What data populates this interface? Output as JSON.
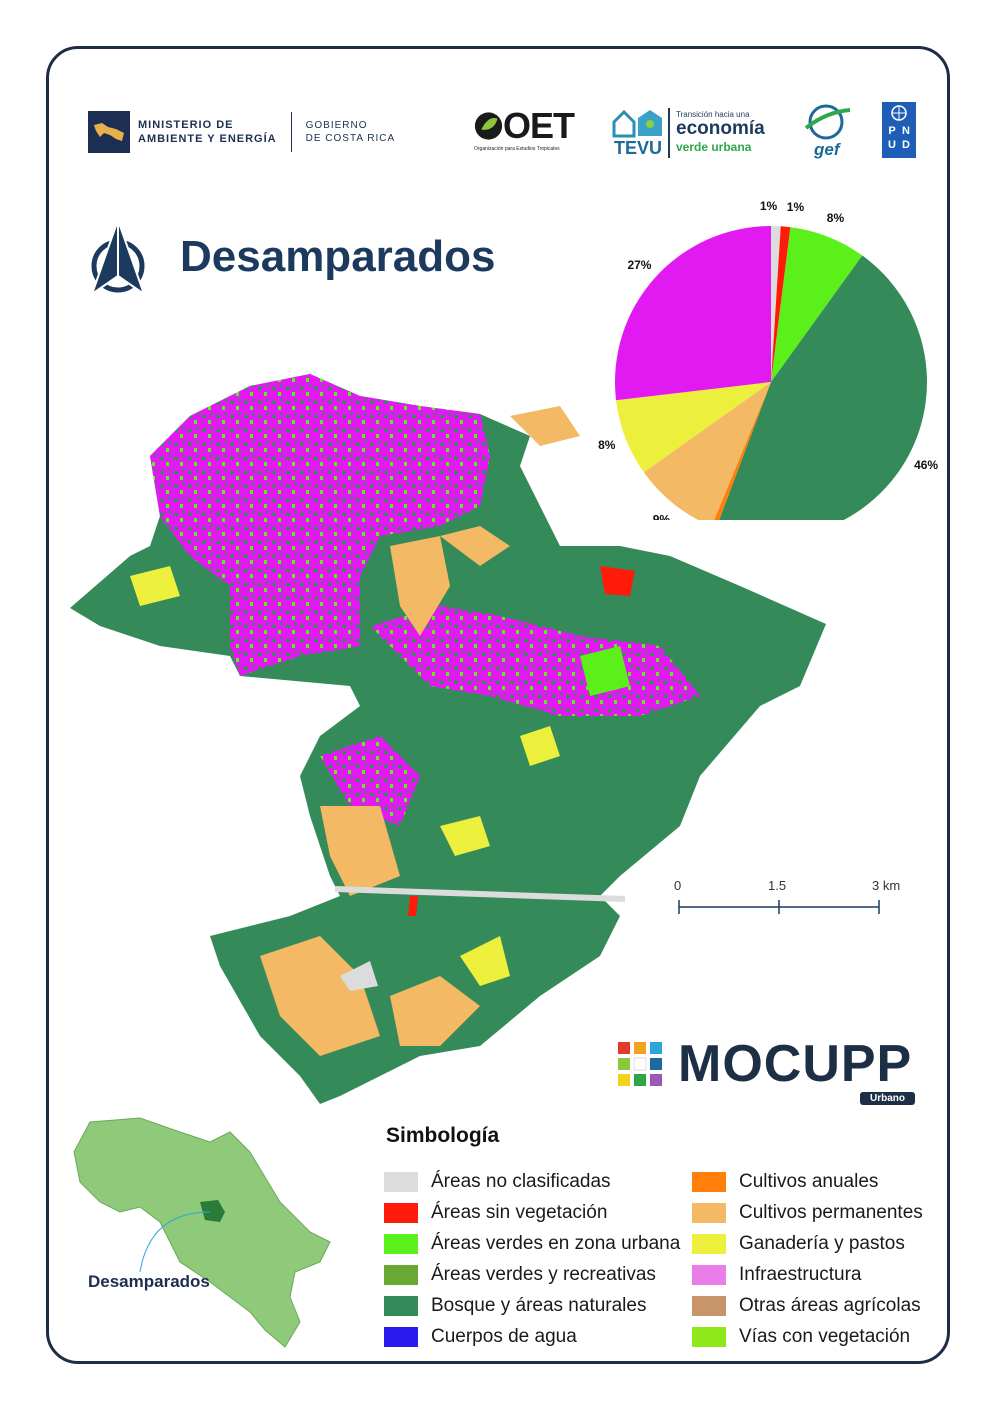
{
  "header": {
    "ministry_line": "MINISTERIO DE\nAMBIENTE Y ENERGÍA",
    "gob_line": "GOBIERNO\nDE COSTA RICA",
    "oet_name": "OET",
    "oet_sub": "Organización para Estudios Tropicales",
    "tevu_name": "TEVU",
    "tevu_tag1": "Transición hacia una",
    "tevu_tag2": "economía",
    "tevu_tag3": "verde urbana",
    "gef_name": "gef",
    "undp_letters": [
      "P",
      "N",
      "U",
      "D"
    ]
  },
  "title": "Desamparados",
  "chart_data": {
    "type": "pie",
    "labels": [
      "Áreas no clasificadas",
      "Áreas sin vegetación",
      "Áreas verdes en zona urbana",
      "Bosque y áreas naturales",
      "Cultivos anuales",
      "Cultivos permanentes",
      "Ganadería y pastos",
      "Infraestructura"
    ],
    "values": [
      1,
      1,
      8,
      46,
      0.5,
      9,
      8,
      27
    ],
    "value_labels": [
      "1%",
      "1%",
      "8%",
      "46%",
      "",
      "9%",
      "8%",
      "27%"
    ],
    "colors": [
      "#dcdcdc",
      "#ff1a0a",
      "#5cf01a",
      "#348a59",
      "#ff7f0a",
      "#f4b964",
      "#ecf03c",
      "#e01af0"
    ]
  },
  "scale_bar": {
    "labels": [
      "0",
      "1.5",
      "3 km"
    ]
  },
  "mocupp": {
    "word": "MOCUPP",
    "sub": "Urbano"
  },
  "inset": {
    "label": "Desamparados"
  },
  "legend": {
    "title": "Simbología",
    "left": [
      {
        "label": "Áreas no clasificadas",
        "color": "#dcdcdc"
      },
      {
        "label": "Áreas sin vegetación",
        "color": "#ff1a0a"
      },
      {
        "label": "Áreas verdes en zona urbana",
        "color": "#5cf01a"
      },
      {
        "label": "Áreas verdes y recreativas",
        "color": "#6aa833"
      },
      {
        "label": "Bosque y áreas naturales",
        "color": "#348a59"
      },
      {
        "label": "Cuerpos de agua",
        "color": "#2a1af0"
      }
    ],
    "right": [
      {
        "label": "Cultivos anuales",
        "color": "#ff7f0a"
      },
      {
        "label": "Cultivos permanentes",
        "color": "#f4b964"
      },
      {
        "label": "Ganadería y pastos",
        "color": "#ecf03c"
      },
      {
        "label": "Infraestructura",
        "color": "#e97ee8"
      },
      {
        "label": "Otras áreas agrícolas",
        "color": "#c8956a"
      },
      {
        "label": "Vías con vegetación",
        "color": "#8ee81a"
      }
    ]
  }
}
